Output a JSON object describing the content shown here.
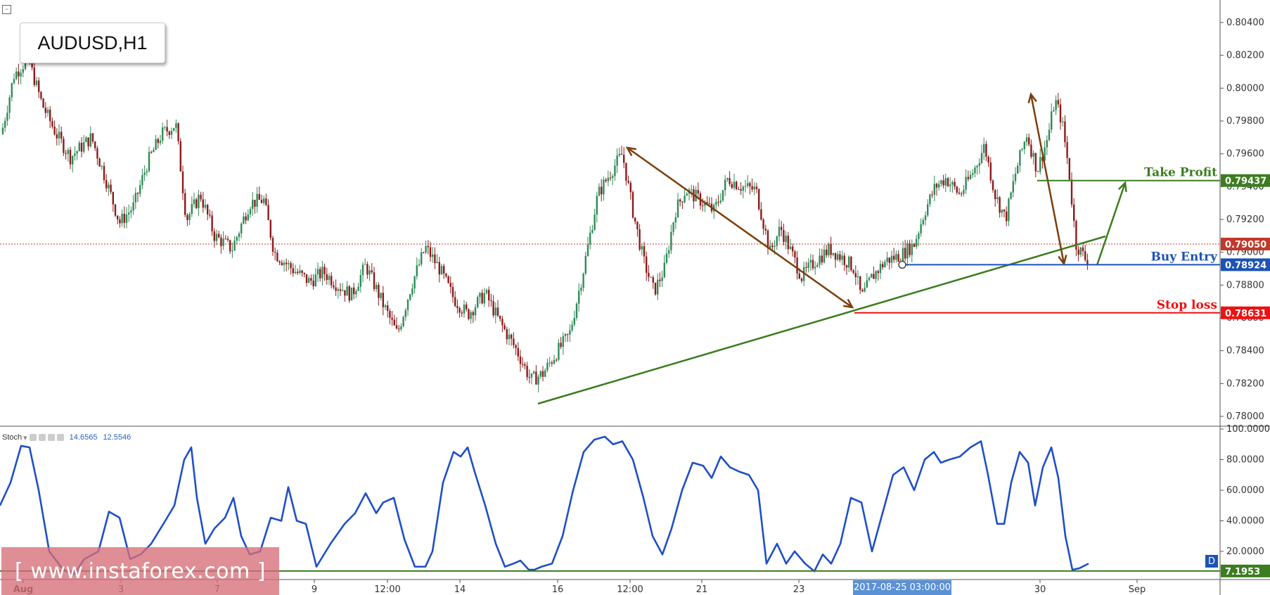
{
  "symbol": "AUDUSD,H1",
  "stoch": {
    "name": "Stoch",
    "k": "14.6565",
    "d": "12.5546",
    "pane_badge": "D"
  },
  "watermark": "[ www.instaforex.com ]",
  "timestamp": "2017-08-25 03:00:00",
  "colors": {
    "bull": "#2e8b57",
    "bear": "#8b1a1a",
    "arrow_brown": "#7b3f0c",
    "trend_green": "#3b7d1f",
    "take_profit": "#3b7d1f",
    "buy_entry": "#1c53b6",
    "stop_loss": "#ee1111",
    "current": "#c0392b",
    "stoch_line": "#1f4fc8"
  },
  "levels": {
    "take_profit": {
      "label": "Take Profit",
      "value": "0.79437"
    },
    "buy_entry": {
      "label": "Buy Entry",
      "value": "0.78924"
    },
    "stop_loss": {
      "label": "Stop loss",
      "value": "0.78631"
    },
    "current": {
      "value": "0.79050"
    },
    "stoch_level": {
      "value": "7.1953"
    }
  },
  "chart_data": [
    {
      "type": "candlestick",
      "title": "AUDUSD,H1",
      "x_ticks": [
        "Aug",
        "3",
        "7",
        "9",
        "12:00",
        "14",
        "16",
        "12:00",
        "21",
        "23",
        "30",
        "Sep"
      ],
      "y_ticks": [
        "0.80400",
        "0.80200",
        "0.80000",
        "0.79800",
        "0.79600",
        "0.79400",
        "0.79200",
        "0.79000",
        "0.78800",
        "0.78600",
        "0.78400",
        "0.78200",
        "0.78000"
      ],
      "ylim": [
        0.7796,
        0.8045
      ],
      "price_path": [
        [
          0,
          0.7968
        ],
        [
          20,
          0.8008
        ],
        [
          40,
          0.8018
        ],
        [
          60,
          0.799
        ],
        [
          80,
          0.7972
        ],
        [
          100,
          0.7958
        ],
        [
          130,
          0.797
        ],
        [
          150,
          0.7945
        ],
        [
          170,
          0.7918
        ],
        [
          190,
          0.7928
        ],
        [
          210,
          0.7955
        ],
        [
          230,
          0.7972
        ],
        [
          250,
          0.7978
        ],
        [
          265,
          0.792
        ],
        [
          285,
          0.7935
        ],
        [
          305,
          0.791
        ],
        [
          330,
          0.7902
        ],
        [
          355,
          0.793
        ],
        [
          375,
          0.7932
        ],
        [
          390,
          0.79
        ],
        [
          415,
          0.789
        ],
        [
          440,
          0.7882
        ],
        [
          460,
          0.7888
        ],
        [
          480,
          0.788
        ],
        [
          500,
          0.7874
        ],
        [
          520,
          0.7892
        ],
        [
          545,
          0.7868
        ],
        [
          565,
          0.785
        ],
        [
          585,
          0.788
        ],
        [
          605,
          0.7903
        ],
        [
          625,
          0.789
        ],
        [
          645,
          0.7872
        ],
        [
          665,
          0.7862
        ],
        [
          690,
          0.7875
        ],
        [
          710,
          0.7858
        ],
        [
          735,
          0.784
        ],
        [
          755,
          0.7822
        ],
        [
          772,
          0.7826
        ],
        [
          790,
          0.7838
        ],
        [
          810,
          0.785
        ],
        [
          830,
          0.789
        ],
        [
          850,
          0.7935
        ],
        [
          870,
          0.795
        ],
        [
          885,
          0.796
        ],
        [
          900,
          0.7925
        ],
        [
          915,
          0.7895
        ],
        [
          930,
          0.7876
        ],
        [
          945,
          0.789
        ],
        [
          960,
          0.7925
        ],
        [
          975,
          0.7938
        ],
        [
          995,
          0.7932
        ],
        [
          1015,
          0.7925
        ],
        [
          1035,
          0.7945
        ],
        [
          1055,
          0.794
        ],
        [
          1075,
          0.7938
        ],
        [
          1095,
          0.79
        ],
        [
          1110,
          0.7915
        ],
        [
          1125,
          0.79
        ],
        [
          1140,
          0.7885
        ],
        [
          1160,
          0.7895
        ],
        [
          1180,
          0.7902
        ],
        [
          1200,
          0.7896
        ],
        [
          1215,
          0.789
        ],
        [
          1225,
          0.7872
        ],
        [
          1240,
          0.7885
        ],
        [
          1260,
          0.7895
        ],
        [
          1280,
          0.7898
        ],
        [
          1300,
          0.7905
        ],
        [
          1315,
          0.7925
        ],
        [
          1330,
          0.794
        ],
        [
          1345,
          0.7945
        ],
        [
          1365,
          0.7935
        ],
        [
          1385,
          0.795
        ],
        [
          1400,
          0.7965
        ],
        [
          1415,
          0.7935
        ],
        [
          1430,
          0.792
        ],
        [
          1445,
          0.795
        ],
        [
          1460,
          0.7972
        ],
        [
          1475,
          0.795
        ],
        [
          1490,
          0.797
        ],
        [
          1500,
          0.7993
        ],
        [
          1510,
          0.798
        ],
        [
          1520,
          0.795
        ],
        [
          1530,
          0.7905
        ],
        [
          1545,
          0.7895
        ],
        [
          1560,
          0.79
        ],
        [
          1548,
          0.7903
        ]
      ]
    },
    {
      "type": "line",
      "title": "Stoch",
      "y_ticks": [
        "100.0000",
        "80.0000",
        "60.0000",
        "40.0000",
        "20.0000"
      ],
      "ylim": [
        0,
        100
      ],
      "series": [
        {
          "name": "Stoch",
          "points": [
            [
              0,
              50
            ],
            [
              15,
              65
            ],
            [
              30,
              89
            ],
            [
              42,
              88
            ],
            [
              55,
              60
            ],
            [
              70,
              20
            ],
            [
              90,
              8
            ],
            [
              105,
              5
            ],
            [
              120,
              15
            ],
            [
              140,
              20
            ],
            [
              155,
              46
            ],
            [
              170,
              42
            ],
            [
              185,
              15
            ],
            [
              200,
              18
            ],
            [
              215,
              25
            ],
            [
              235,
              40
            ],
            [
              248,
              50
            ],
            [
              262,
              80
            ],
            [
              272,
              88
            ],
            [
              280,
              55
            ],
            [
              292,
              25
            ],
            [
              305,
              35
            ],
            [
              320,
              42
            ],
            [
              332,
              55
            ],
            [
              343,
              30
            ],
            [
              355,
              18
            ],
            [
              370,
              20
            ],
            [
              385,
              42
            ],
            [
              400,
              40
            ],
            [
              410,
              62
            ],
            [
              422,
              40
            ],
            [
              435,
              38
            ],
            [
              450,
              10
            ],
            [
              470,
              25
            ],
            [
              490,
              38
            ],
            [
              505,
              45
            ],
            [
              520,
              58
            ],
            [
              535,
              45
            ],
            [
              545,
              52
            ],
            [
              560,
              55
            ],
            [
              575,
              28
            ],
            [
              590,
              10
            ],
            [
              605,
              10
            ],
            [
              615,
              20
            ],
            [
              630,
              65
            ],
            [
              645,
              85
            ],
            [
              655,
              82
            ],
            [
              665,
              88
            ],
            [
              675,
              72
            ],
            [
              690,
              50
            ],
            [
              705,
              25
            ],
            [
              718,
              10
            ],
            [
              730,
              12
            ],
            [
              740,
              14
            ],
            [
              752,
              8
            ],
            [
              760,
              8
            ],
            [
              770,
              10
            ],
            [
              785,
              12
            ],
            [
              800,
              30
            ],
            [
              815,
              60
            ],
            [
              830,
              85
            ],
            [
              845,
              93
            ],
            [
              860,
              95
            ],
            [
              872,
              90
            ],
            [
              885,
              92
            ],
            [
              900,
              80
            ],
            [
              915,
              55
            ],
            [
              928,
              30
            ],
            [
              942,
              18
            ],
            [
              955,
              35
            ],
            [
              970,
              60
            ],
            [
              985,
              78
            ],
            [
              1000,
              76
            ],
            [
              1012,
              68
            ],
            [
              1025,
              82
            ],
            [
              1038,
              75
            ],
            [
              1052,
              72
            ],
            [
              1065,
              70
            ],
            [
              1078,
              60
            ],
            [
              1090,
              12
            ],
            [
              1105,
              25
            ],
            [
              1118,
              12
            ],
            [
              1130,
              20
            ],
            [
              1145,
              12
            ],
            [
              1158,
              7
            ],
            [
              1170,
              18
            ],
            [
              1182,
              12
            ],
            [
              1195,
              25
            ],
            [
              1210,
              55
            ],
            [
              1225,
              52
            ],
            [
              1240,
              20
            ],
            [
              1255,
              45
            ],
            [
              1270,
              70
            ],
            [
              1285,
              75
            ],
            [
              1300,
              60
            ],
            [
              1315,
              80
            ],
            [
              1328,
              85
            ],
            [
              1338,
              78
            ],
            [
              1350,
              80
            ],
            [
              1365,
              82
            ],
            [
              1380,
              88
            ],
            [
              1395,
              92
            ],
            [
              1405,
              70
            ],
            [
              1418,
              38
            ],
            [
              1428,
              38
            ],
            [
              1438,
              65
            ],
            [
              1450,
              85
            ],
            [
              1462,
              78
            ],
            [
              1472,
              50
            ],
            [
              1483,
              75
            ],
            [
              1495,
              88
            ],
            [
              1505,
              68
            ],
            [
              1515,
              30
            ],
            [
              1525,
              8
            ],
            [
              1535,
              9
            ],
            [
              1548,
              12
            ]
          ]
        }
      ]
    }
  ]
}
